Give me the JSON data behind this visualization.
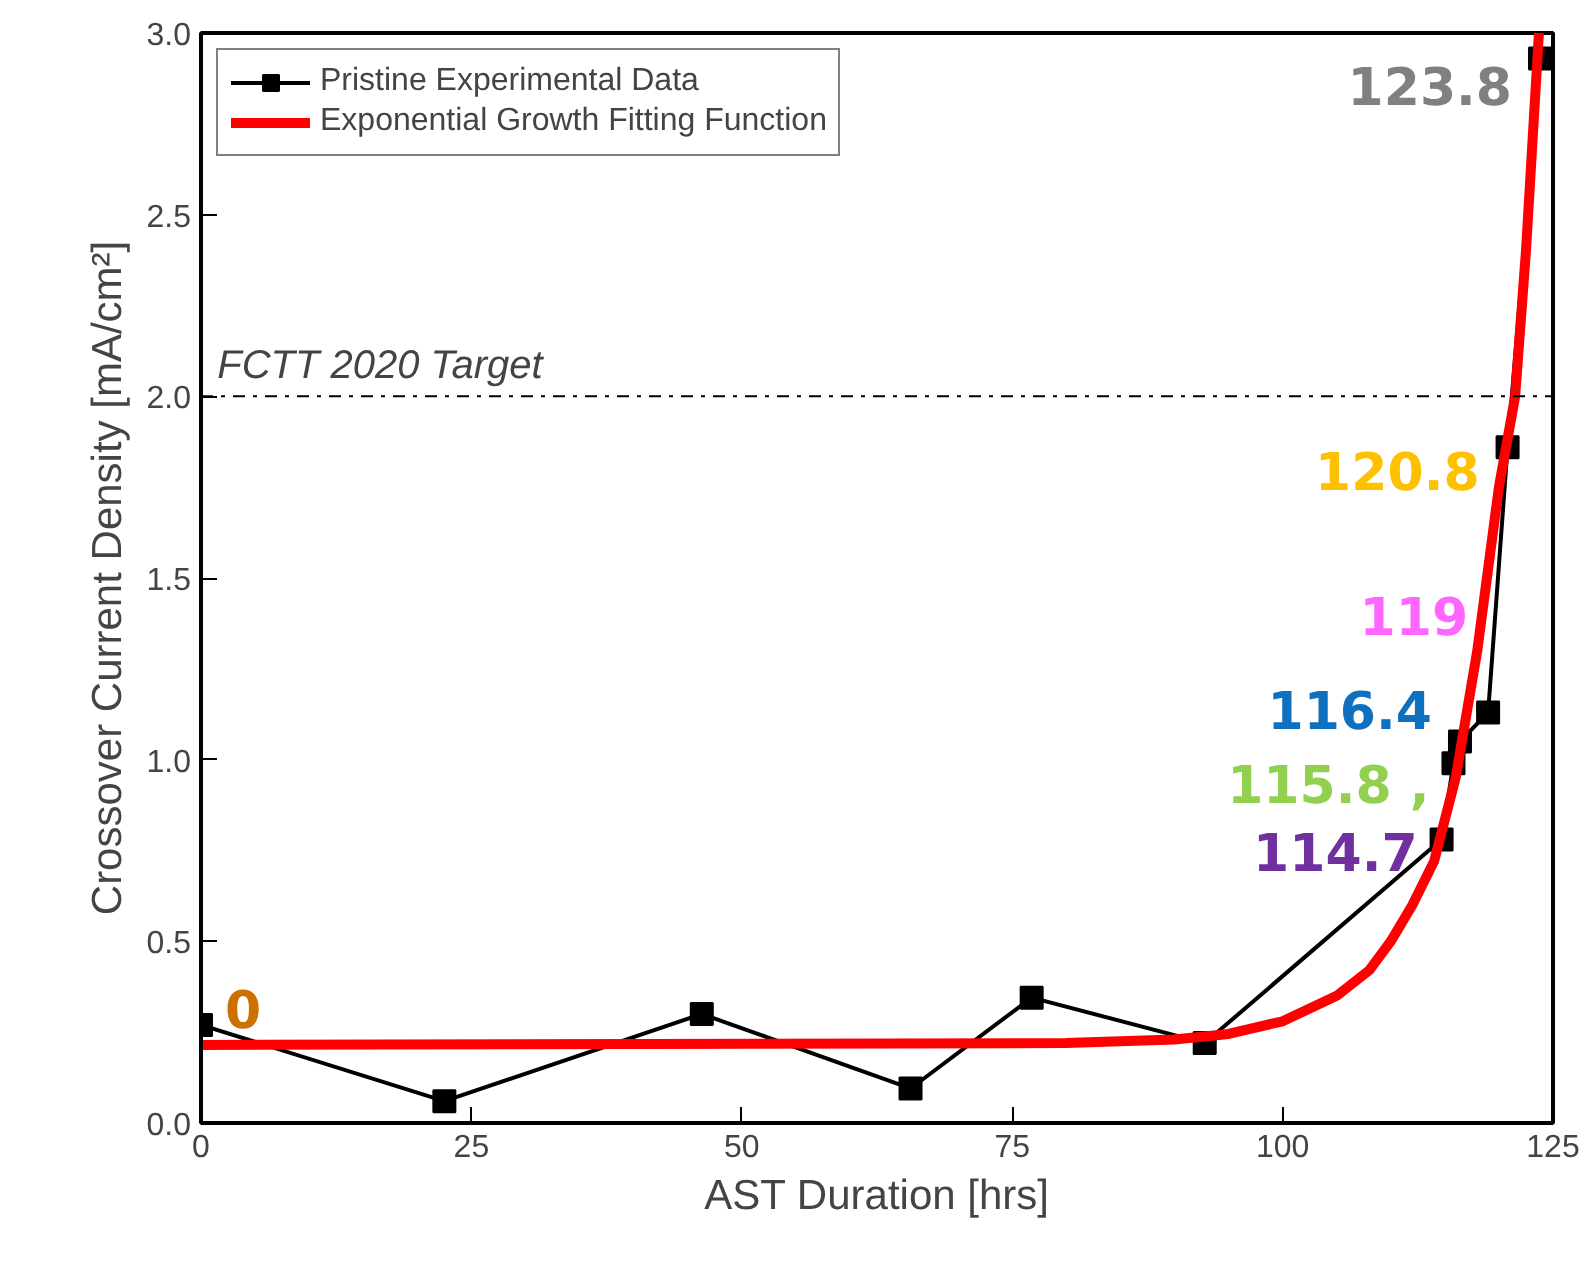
{
  "chart_data": {
    "type": "line",
    "xlabel": "AST Duration [hrs]",
    "ylabel": "Crossover Current Density [mA/cm²]",
    "xlim": [
      0,
      125
    ],
    "ylim": [
      0,
      3.0
    ],
    "xticks": [
      0,
      25,
      50,
      75,
      100,
      125
    ],
    "yticks": [
      {
        "value": 0,
        "label": "0.0"
      },
      {
        "value": 0.5,
        "label": "0.5"
      },
      {
        "value": 1,
        "label": "1.0"
      },
      {
        "value": 1.5,
        "label": "1.5"
      },
      {
        "value": 2,
        "label": "2.0"
      },
      {
        "value": 2.5,
        "label": "2.5"
      },
      {
        "value": 3,
        "label": "3.0"
      }
    ],
    "grid": false,
    "legend": "top left",
    "series": [
      {
        "name": "Pristine Experimental Data",
        "color": "#000000",
        "marker": "square",
        "x": [
          0,
          22.5,
          46.3,
          65.6,
          76.8,
          92.8,
          114.7,
          115.8,
          116.4,
          119,
          120.8,
          123.8
        ],
        "values": [
          0.27,
          0.06,
          0.3,
          0.095,
          0.345,
          0.22,
          0.78,
          0.99,
          1.05,
          1.13,
          1.86,
          2.93
        ]
      },
      {
        "name": "Exponential Growth Fitting Function",
        "color": "#ff0000",
        "marker": "none",
        "x": [
          0,
          80,
          90,
          95,
          100,
          105,
          108,
          110,
          112,
          114,
          116,
          118,
          120,
          121.5,
          122.5,
          123.7
        ],
        "values": [
          0.215,
          0.22,
          0.23,
          0.245,
          0.28,
          0.35,
          0.42,
          0.5,
          0.6,
          0.72,
          0.95,
          1.3,
          1.75,
          2.0,
          2.4,
          3.0
        ]
      }
    ],
    "ref_lines": [
      {
        "axis": "y",
        "value": 2.0,
        "label": "FCTT 2020 Target",
        "color": "#000000",
        "line_style": "dashdot"
      }
    ],
    "annotations": [
      {
        "text": "0",
        "x": 0,
        "y": 0.27
      },
      {
        "text": "114.7",
        "x": 114.7,
        "y": 0.78
      },
      {
        "text": "115.8 ,",
        "x": 115.8,
        "y": 0.99
      },
      {
        "text": "116.4",
        "x": 116.4,
        "y": 1.05
      },
      {
        "text": "119",
        "x": 119,
        "y": 1.13
      },
      {
        "text": "120.8",
        "x": 120.8,
        "y": 1.86
      },
      {
        "text": "123.8",
        "x": 123.8,
        "y": 2.93
      }
    ]
  }
}
